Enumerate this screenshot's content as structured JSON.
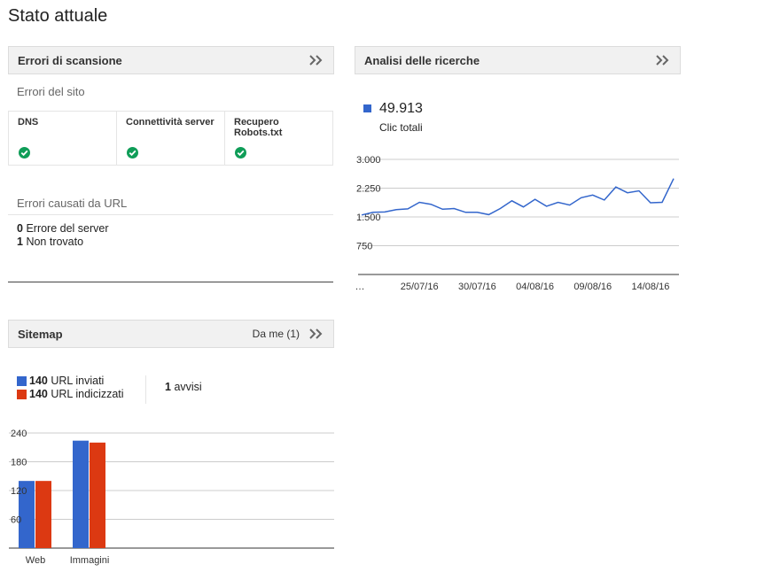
{
  "page": {
    "title": "Stato attuale"
  },
  "crawl_errors": {
    "header": "Errori di scansione",
    "site_errors_title": "Errori del sito",
    "site_errors": [
      {
        "label": "DNS",
        "status": "ok"
      },
      {
        "label": "Connettività server",
        "status": "ok"
      },
      {
        "label": "Recupero Robots.txt",
        "status": "ok"
      }
    ],
    "url_errors_title": "Errori causati da URL",
    "url_errors": [
      {
        "count": "0",
        "label": "Errore del server"
      },
      {
        "count": "1",
        "label": "Non trovato"
      }
    ]
  },
  "search_analytics": {
    "header": "Analisi delle ricerche",
    "metric_value": "49.913",
    "metric_label": "Clic totali",
    "series_color": "#3366cc"
  },
  "sitemaps": {
    "header": "Sitemap",
    "filter_label": "Da me (1)",
    "submitted": {
      "count": "140",
      "label": "URL inviati",
      "color": "#3366cc"
    },
    "indexed": {
      "count": "140",
      "label": "URL indicizzati",
      "color": "#dc3912"
    },
    "warnings": {
      "count": "1",
      "label": "avvisi"
    }
  },
  "chart_data": [
    {
      "type": "line",
      "series_color": "#3366cc",
      "y_ticks": [
        "3.000",
        "2.250",
        "1.500",
        "750"
      ],
      "y_tick_values": [
        3000,
        2250,
        1500,
        750
      ],
      "ylim": [
        0,
        3000
      ],
      "x_tick_labels": [
        "…",
        "25/07/16",
        "30/07/16",
        "04/08/16",
        "09/08/16",
        "14/08/16"
      ],
      "x_tick_index": [
        0,
        5,
        10,
        15,
        20,
        25
      ],
      "values": [
        1550,
        1620,
        1630,
        1690,
        1710,
        1880,
        1830,
        1700,
        1720,
        1620,
        1620,
        1560,
        1720,
        1920,
        1760,
        1960,
        1780,
        1880,
        1810,
        2000,
        2070,
        1940,
        2280,
        2130,
        2180,
        1870,
        1880,
        2500
      ]
    },
    {
      "type": "bar",
      "categories": [
        "Web",
        "Immagini"
      ],
      "series": [
        {
          "name": "URL inviati",
          "color": "#3366cc",
          "values": [
            140,
            224
          ]
        },
        {
          "name": "URL indicizzati",
          "color": "#dc3912",
          "values": [
            140,
            220
          ]
        }
      ],
      "y_ticks": [
        "240",
        "180",
        "120",
        "60"
      ],
      "y_tick_values": [
        240,
        180,
        120,
        60
      ],
      "ylim": [
        0,
        240
      ]
    }
  ]
}
